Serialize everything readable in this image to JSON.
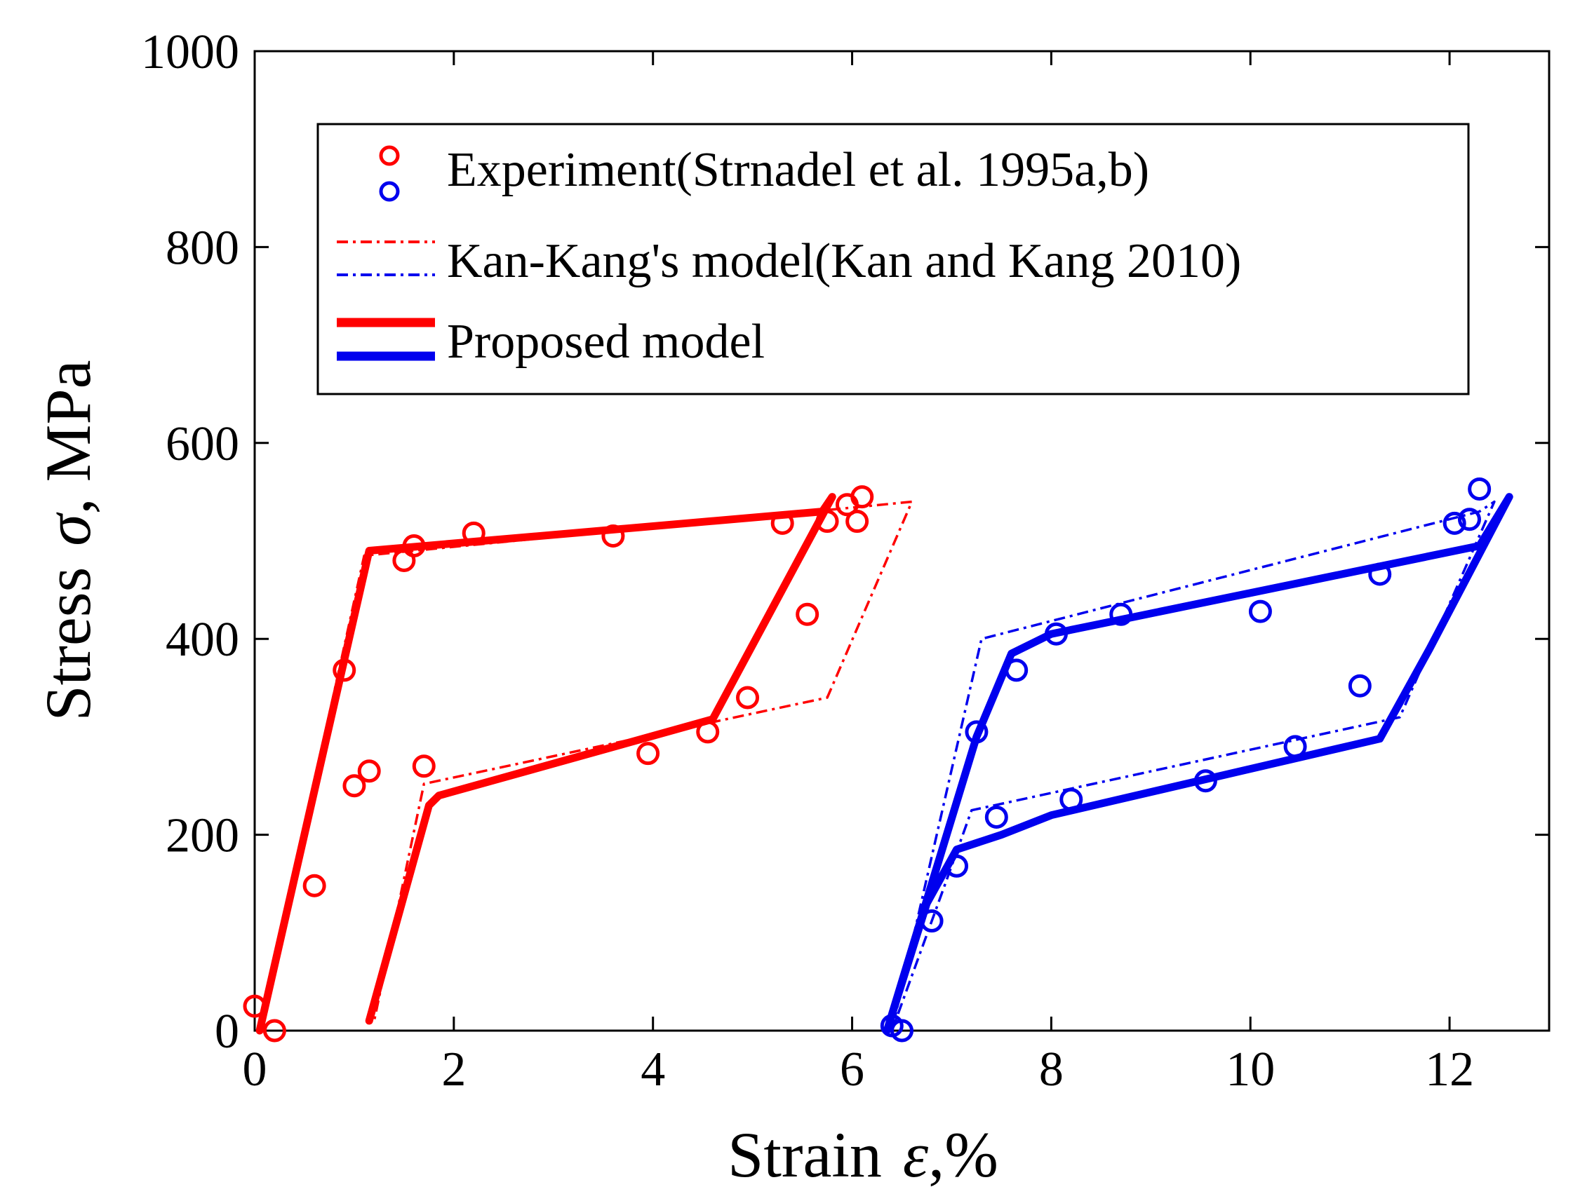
{
  "chart_data": {
    "type": "line",
    "title": "",
    "xlabel": {
      "prefix": "Strain",
      "symbol": "ε",
      "unit": ",%"
    },
    "ylabel": {
      "prefix": "Stress",
      "symbol": "σ",
      "unit": ", MPa"
    },
    "xlim": [
      0,
      13
    ],
    "ylim": [
      0,
      1000
    ],
    "xticks": [
      0,
      2,
      4,
      6,
      8,
      10,
      12
    ],
    "yticks": [
      0,
      200,
      400,
      600,
      800,
      1000
    ],
    "grid": false,
    "legend_position": "upper",
    "legend": [
      {
        "label": "Experiment(Strnadel et al. 1995a,b)",
        "style": "markers"
      },
      {
        "label": "Kan-Kang's model(Kan and Kang 2010)",
        "style": "dashdot"
      },
      {
        "label": "Proposed model",
        "style": "solid"
      }
    ],
    "colors": {
      "red": "#ff0000",
      "blue": "#0000ee"
    },
    "series": [
      {
        "name": "Experiment red",
        "color": "#ff0000",
        "style": "markers",
        "points": [
          [
            0.0,
            25
          ],
          [
            0.2,
            0
          ],
          [
            0.6,
            148
          ],
          [
            0.9,
            368
          ],
          [
            1.0,
            250
          ],
          [
            1.15,
            265
          ],
          [
            1.5,
            480
          ],
          [
            1.6,
            495
          ],
          [
            1.7,
            270
          ],
          [
            2.2,
            508
          ],
          [
            3.6,
            505
          ],
          [
            3.95,
            283
          ],
          [
            4.55,
            305
          ],
          [
            4.95,
            340
          ],
          [
            5.3,
            518
          ],
          [
            5.55,
            425
          ],
          [
            5.75,
            520
          ],
          [
            5.95,
            537
          ],
          [
            6.05,
            520
          ],
          [
            6.1,
            545
          ]
        ]
      },
      {
        "name": "Kan-Kang red",
        "color": "#ff0000",
        "style": "dashdot",
        "points": [
          [
            0.05,
            0
          ],
          [
            1.1,
            485
          ],
          [
            6.6,
            540
          ],
          [
            5.75,
            340
          ],
          [
            1.7,
            252
          ],
          [
            1.2,
            10
          ]
        ]
      },
      {
        "name": "Proposed red",
        "color": "#ff0000",
        "style": "solid",
        "points": [
          [
            0.05,
            0
          ],
          [
            1.15,
            490
          ],
          [
            5.7,
            530
          ],
          [
            5.8,
            545
          ],
          [
            4.6,
            318
          ],
          [
            1.85,
            240
          ],
          [
            1.75,
            230
          ],
          [
            1.15,
            10
          ]
        ]
      },
      {
        "name": "Experiment blue",
        "color": "#0000ee",
        "style": "markers",
        "points": [
          [
            6.4,
            5
          ],
          [
            6.5,
            0
          ],
          [
            6.8,
            112
          ],
          [
            7.05,
            168
          ],
          [
            7.25,
            305
          ],
          [
            7.45,
            218
          ],
          [
            7.65,
            368
          ],
          [
            8.05,
            405
          ],
          [
            8.2,
            236
          ],
          [
            8.7,
            425
          ],
          [
            9.55,
            255
          ],
          [
            10.1,
            428
          ],
          [
            10.45,
            290
          ],
          [
            11.1,
            352
          ],
          [
            11.3,
            466
          ],
          [
            12.05,
            518
          ],
          [
            12.2,
            522
          ],
          [
            12.3,
            553
          ]
        ]
      },
      {
        "name": "Kan-Kang blue",
        "color": "#0000ee",
        "style": "dashdot",
        "points": [
          [
            6.4,
            0
          ],
          [
            7.3,
            400
          ],
          [
            12.3,
            530
          ],
          [
            12.45,
            540
          ],
          [
            11.5,
            320
          ],
          [
            7.2,
            225
          ],
          [
            6.9,
            140
          ],
          [
            6.4,
            0
          ]
        ]
      },
      {
        "name": "Proposed blue",
        "color": "#0000ee",
        "style": "solid",
        "points": [
          [
            6.35,
            0
          ],
          [
            7.25,
            300
          ],
          [
            7.6,
            385
          ],
          [
            8.0,
            405
          ],
          [
            12.3,
            495
          ],
          [
            12.6,
            545
          ],
          [
            11.8,
            390
          ],
          [
            11.3,
            298
          ],
          [
            8.0,
            220
          ],
          [
            7.5,
            200
          ],
          [
            7.05,
            185
          ],
          [
            6.75,
            130
          ],
          [
            6.35,
            0
          ]
        ]
      }
    ]
  }
}
